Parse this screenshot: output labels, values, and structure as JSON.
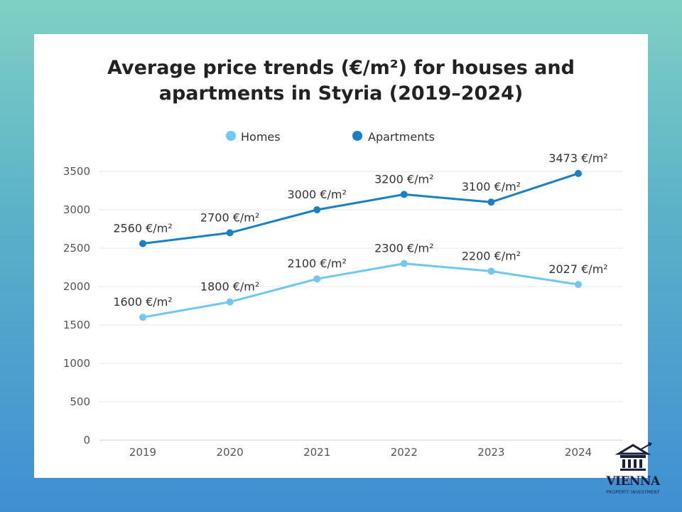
{
  "chart_data": {
    "type": "line",
    "title_line1": "Average price trends (€/m²) for houses and",
    "title_line2": "apartments in Styria (2019–2024)",
    "categories": [
      "2019",
      "2020",
      "2021",
      "2022",
      "2023",
      "2024"
    ],
    "series": [
      {
        "name": "Homes",
        "color": "#6ec8f2",
        "values": [
          1600,
          1800,
          2100,
          2300,
          2200,
          2027
        ],
        "labels": [
          "1600 €/m²",
          "1800 €/m²",
          "2100 €/m²",
          "2300 €/m²",
          "2200 €/m²",
          "2027 €/m²"
        ]
      },
      {
        "name": "Apartments",
        "color": "#1a80c4",
        "values": [
          2560,
          2700,
          3000,
          3200,
          3100,
          3473
        ],
        "labels": [
          "2560 €/m²",
          "2700 €/m²",
          "3000 €/m²",
          "3200 €/m²",
          "3100 €/m²",
          "3473 €/m²"
        ]
      }
    ],
    "yticks": [
      0,
      500,
      1000,
      1500,
      2000,
      2500,
      3000,
      3500
    ],
    "ylim": [
      0,
      3500
    ],
    "xlabel": "",
    "ylabel": "",
    "grid": true,
    "legend": "top-center"
  },
  "logo": {
    "name": "VIENNA",
    "tagline": "PROPERTY INVESTMENT"
  }
}
